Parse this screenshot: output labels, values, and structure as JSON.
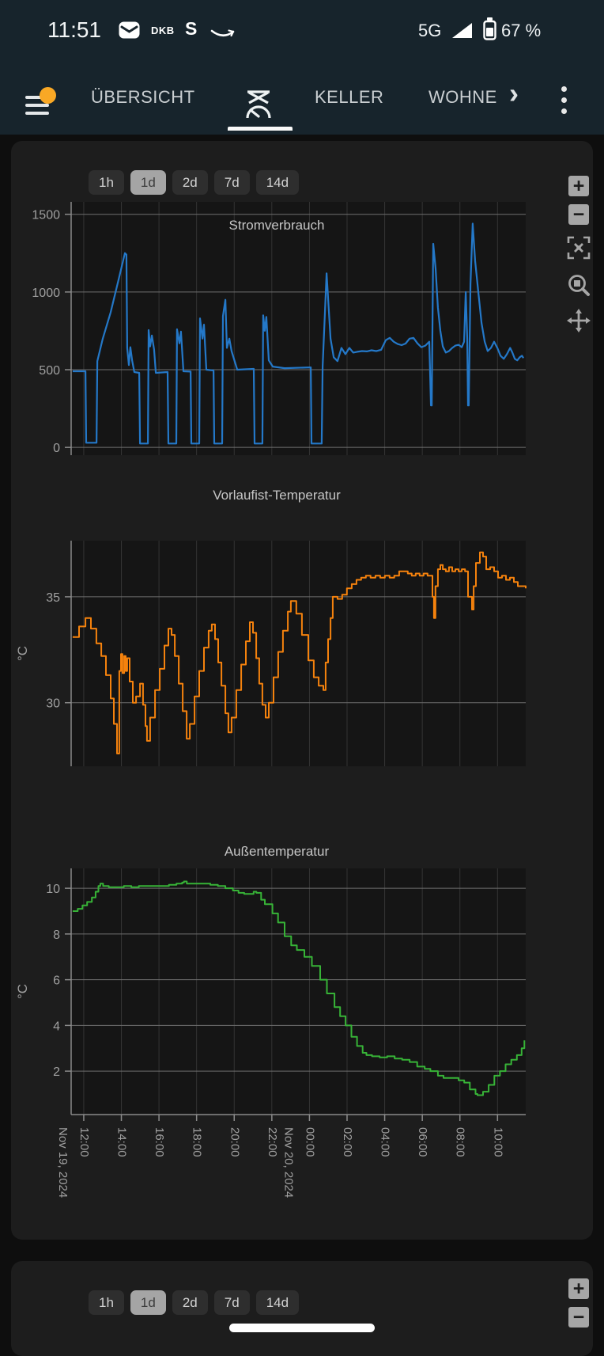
{
  "status_bar": {
    "time": "11:51",
    "dkb_label": "DKB",
    "sparkasse_label": "S",
    "network": "5G",
    "battery": "67 %"
  },
  "tab_bar": {
    "tabs": [
      {
        "label": "ÜBERSICHT",
        "selected": false
      },
      {
        "label": "",
        "icon": "heating-gauge-icon",
        "selected": true
      },
      {
        "label": "KELLER",
        "selected": false
      },
      {
        "label": "WOHNE",
        "selected": false
      }
    ],
    "overflow_chevron": "›"
  },
  "time_range": {
    "options": [
      "1h",
      "1d",
      "2d",
      "7d",
      "14d"
    ],
    "selected": "1d"
  },
  "controls": [
    "zoom-in",
    "zoom-out",
    "reset-view",
    "box-zoom",
    "pan"
  ],
  "x_axis": {
    "range": [
      0,
      24.17
    ],
    "unit": "hours since Nov 19, 2024 11:20",
    "ticks": [
      {
        "t": 0.67,
        "label": "12:00",
        "date": "Nov 19, 2024"
      },
      {
        "t": 2.67,
        "label": "14:00"
      },
      {
        "t": 4.67,
        "label": "16:00"
      },
      {
        "t": 6.67,
        "label": "18:00"
      },
      {
        "t": 8.67,
        "label": "20:00"
      },
      {
        "t": 10.67,
        "label": "22:00"
      },
      {
        "t": 12.67,
        "label": "00:00",
        "date": "Nov 20, 2024"
      },
      {
        "t": 14.67,
        "label": "02:00"
      },
      {
        "t": 16.67,
        "label": "04:00"
      },
      {
        "t": 18.67,
        "label": "06:00"
      },
      {
        "t": 20.67,
        "label": "08:00"
      },
      {
        "t": 22.67,
        "label": "10:00"
      }
    ]
  },
  "chart_data": [
    {
      "type": "line",
      "title": "Stromverbrauch",
      "ylabel": "",
      "color": "#2478c8",
      "yticks": [
        0,
        500,
        1000,
        1500
      ],
      "ylim": [
        -50,
        1580
      ],
      "grid": true,
      "step": false,
      "series": [
        [
          0.08,
          490
        ],
        [
          0.76,
          490
        ],
        [
          0.8,
          30
        ],
        [
          1.35,
          30
        ],
        [
          1.39,
          555
        ],
        [
          1.68,
          700
        ],
        [
          2.1,
          870
        ],
        [
          2.52,
          1080
        ],
        [
          2.86,
          1250
        ],
        [
          2.94,
          1240
        ],
        [
          2.98,
          640
        ],
        [
          3.07,
          530
        ],
        [
          3.15,
          645
        ],
        [
          3.24,
          560
        ],
        [
          3.36,
          485
        ],
        [
          3.62,
          480
        ],
        [
          3.66,
          25
        ],
        [
          4.08,
          25
        ],
        [
          4.12,
          755
        ],
        [
          4.2,
          650
        ],
        [
          4.29,
          720
        ],
        [
          4.41,
          630
        ],
        [
          4.5,
          480
        ],
        [
          5.13,
          485
        ],
        [
          5.17,
          25
        ],
        [
          5.59,
          25
        ],
        [
          5.63,
          760
        ],
        [
          5.76,
          670
        ],
        [
          5.84,
          745
        ],
        [
          5.97,
          490
        ],
        [
          6.35,
          488
        ],
        [
          6.39,
          25
        ],
        [
          6.81,
          25
        ],
        [
          6.85,
          830
        ],
        [
          6.98,
          700
        ],
        [
          7.06,
          790
        ],
        [
          7.19,
          500
        ],
        [
          7.57,
          495
        ],
        [
          7.61,
          25
        ],
        [
          8.03,
          25
        ],
        [
          8.07,
          845
        ],
        [
          8.2,
          950
        ],
        [
          8.28,
          640
        ],
        [
          8.41,
          700
        ],
        [
          8.53,
          620
        ],
        [
          8.83,
          500
        ],
        [
          9.71,
          505
        ],
        [
          9.75,
          25
        ],
        [
          10.17,
          25
        ],
        [
          10.21,
          850
        ],
        [
          10.3,
          750
        ],
        [
          10.38,
          840
        ],
        [
          10.51,
          560
        ],
        [
          10.72,
          520
        ],
        [
          11.35,
          510
        ],
        [
          12.74,
          515
        ],
        [
          12.78,
          25
        ],
        [
          13.32,
          25
        ],
        [
          13.37,
          520
        ],
        [
          13.58,
          1120
        ],
        [
          13.79,
          700
        ],
        [
          13.96,
          580
        ],
        [
          14.16,
          555
        ],
        [
          14.37,
          640
        ],
        [
          14.58,
          600
        ],
        [
          14.79,
          640
        ],
        [
          15,
          610
        ],
        [
          15.21,
          615
        ],
        [
          15.47,
          620
        ],
        [
          15.72,
          618
        ],
        [
          15.97,
          625
        ],
        [
          16.22,
          620
        ],
        [
          16.48,
          628
        ],
        [
          16.73,
          690
        ],
        [
          16.94,
          705
        ],
        [
          17.15,
          680
        ],
        [
          17.36,
          665
        ],
        [
          17.57,
          658
        ],
        [
          17.78,
          668
        ],
        [
          17.99,
          700
        ],
        [
          18.2,
          705
        ],
        [
          18.41,
          670
        ],
        [
          18.62,
          645
        ],
        [
          18.83,
          655
        ],
        [
          19.04,
          680
        ],
        [
          19.13,
          270
        ],
        [
          19.17,
          270
        ],
        [
          19.25,
          1310
        ],
        [
          19.38,
          1150
        ],
        [
          19.5,
          900
        ],
        [
          19.63,
          750
        ],
        [
          19.76,
          650
        ],
        [
          19.92,
          610
        ],
        [
          20.09,
          620
        ],
        [
          20.26,
          640
        ],
        [
          20.43,
          655
        ],
        [
          20.6,
          660
        ],
        [
          20.77,
          645
        ],
        [
          20.89,
          680
        ],
        [
          20.98,
          1000
        ],
        [
          21.06,
          700
        ],
        [
          21.1,
          270
        ],
        [
          21.14,
          270
        ],
        [
          21.23,
          1050
        ],
        [
          21.35,
          1440
        ],
        [
          21.48,
          1200
        ],
        [
          21.65,
          1000
        ],
        [
          21.82,
          800
        ],
        [
          21.99,
          680
        ],
        [
          22.15,
          620
        ],
        [
          22.32,
          640
        ],
        [
          22.49,
          680
        ],
        [
          22.66,
          640
        ],
        [
          22.83,
          590
        ],
        [
          23,
          570
        ],
        [
          23.17,
          600
        ],
        [
          23.34,
          640
        ],
        [
          23.46,
          610
        ],
        [
          23.59,
          570
        ],
        [
          23.72,
          560
        ],
        [
          23.85,
          580
        ],
        [
          23.97,
          590
        ],
        [
          24.05,
          575
        ]
      ]
    },
    {
      "type": "line",
      "title": "Vorlaufist-Temperatur",
      "ylabel": "°C",
      "color": "#f5820d",
      "yticks": [
        30,
        35
      ],
      "ylim": [
        27.0,
        37.65
      ],
      "grid": true,
      "step": true,
      "series": [
        [
          0.08,
          33.1
        ],
        [
          0.42,
          33.6
        ],
        [
          0.76,
          34
        ],
        [
          1.05,
          33.5
        ],
        [
          1.34,
          32.8
        ],
        [
          1.6,
          32.2
        ],
        [
          1.85,
          31.3
        ],
        [
          2.1,
          30.2
        ],
        [
          2.27,
          29
        ],
        [
          2.44,
          27.6
        ],
        [
          2.56,
          31.5
        ],
        [
          2.65,
          32.3
        ],
        [
          2.73,
          31.4
        ],
        [
          2.82,
          32.2
        ],
        [
          2.9,
          31.5
        ],
        [
          2.98,
          32.1
        ],
        [
          3.11,
          31
        ],
        [
          3.28,
          30
        ],
        [
          3.45,
          30.3
        ],
        [
          3.66,
          30.9
        ],
        [
          3.82,
          29.9
        ],
        [
          3.95,
          28.9
        ],
        [
          4.03,
          28.2
        ],
        [
          4.2,
          29.3
        ],
        [
          4.46,
          30.6
        ],
        [
          4.71,
          31.6
        ],
        [
          4.96,
          32.7
        ],
        [
          5.17,
          33.5
        ],
        [
          5.34,
          33.2
        ],
        [
          5.51,
          32.2
        ],
        [
          5.72,
          30.9
        ],
        [
          5.93,
          29.6
        ],
        [
          6.14,
          28.3
        ],
        [
          6.31,
          29
        ],
        [
          6.56,
          30.3
        ],
        [
          6.81,
          31.5
        ],
        [
          7.06,
          32.6
        ],
        [
          7.31,
          33.4
        ],
        [
          7.48,
          33.7
        ],
        [
          7.65,
          33
        ],
        [
          7.82,
          31.9
        ],
        [
          7.99,
          30.8
        ],
        [
          8.2,
          29.5
        ],
        [
          8.36,
          28.6
        ],
        [
          8.53,
          29.3
        ],
        [
          8.78,
          30.6
        ],
        [
          9.04,
          31.8
        ],
        [
          9.29,
          32.9
        ],
        [
          9.5,
          33.8
        ],
        [
          9.67,
          33.3
        ],
        [
          9.84,
          32.1
        ],
        [
          10,
          30.9
        ],
        [
          10.17,
          29.9
        ],
        [
          10.34,
          29.3
        ],
        [
          10.51,
          30
        ],
        [
          10.76,
          31.2
        ],
        [
          11.01,
          32.4
        ],
        [
          11.26,
          33.4
        ],
        [
          11.52,
          34.3
        ],
        [
          11.68,
          34.8
        ],
        [
          11.97,
          34.2
        ],
        [
          12.27,
          33.2
        ],
        [
          12.61,
          32
        ],
        [
          12.9,
          31.2
        ],
        [
          13.16,
          30.8
        ],
        [
          13.41,
          30.6
        ],
        [
          13.53,
          31.9
        ],
        [
          13.66,
          33
        ],
        [
          13.79,
          34
        ],
        [
          13.91,
          35
        ],
        [
          14.16,
          34.9
        ],
        [
          14.41,
          35.1
        ],
        [
          14.66,
          35.4
        ],
        [
          14.92,
          35.6
        ],
        [
          15.17,
          35.8
        ],
        [
          15.42,
          35.9
        ],
        [
          15.67,
          36
        ],
        [
          15.92,
          35.9
        ],
        [
          16.18,
          36
        ],
        [
          16.43,
          35.9
        ],
        [
          16.68,
          36
        ],
        [
          16.93,
          35.9
        ],
        [
          17.18,
          36
        ],
        [
          17.44,
          36.2
        ],
        [
          17.69,
          36.2
        ],
        [
          17.9,
          36.1
        ],
        [
          18.11,
          36
        ],
        [
          18.32,
          36.1
        ],
        [
          18.53,
          36
        ],
        [
          18.74,
          36.1
        ],
        [
          18.95,
          36
        ],
        [
          19.16,
          36
        ],
        [
          19.21,
          35
        ],
        [
          19.29,
          34
        ],
        [
          19.37,
          35.5
        ],
        [
          19.5,
          36.3
        ],
        [
          19.63,
          36.5
        ],
        [
          19.76,
          36.3
        ],
        [
          19.92,
          36.2
        ],
        [
          20.09,
          36.4
        ],
        [
          20.26,
          36.2
        ],
        [
          20.43,
          36.3
        ],
        [
          20.6,
          36.2
        ],
        [
          20.77,
          36.3
        ],
        [
          20.94,
          36.2
        ],
        [
          21.1,
          35
        ],
        [
          21.31,
          34.4
        ],
        [
          21.4,
          35.5
        ],
        [
          21.52,
          36.6
        ],
        [
          21.73,
          37.1
        ],
        [
          21.9,
          36.9
        ],
        [
          22.07,
          36.3
        ],
        [
          22.28,
          36.4
        ],
        [
          22.49,
          36.2
        ],
        [
          22.7,
          35.9
        ],
        [
          22.91,
          36
        ],
        [
          23.12,
          35.8
        ],
        [
          23.33,
          35.9
        ],
        [
          23.54,
          35.7
        ],
        [
          23.75,
          35.5
        ],
        [
          23.96,
          35.5
        ],
        [
          24.17,
          35.4
        ]
      ]
    },
    {
      "type": "line",
      "title": "Außentemperatur",
      "ylabel": "°C",
      "color": "#37b337",
      "yticks": [
        2,
        4,
        6,
        8,
        10
      ],
      "ylim": [
        0.1,
        10.87
      ],
      "grid": true,
      "step": true,
      "series": [
        [
          0.08,
          9
        ],
        [
          0.35,
          9.1
        ],
        [
          0.6,
          9.25
        ],
        [
          0.85,
          9.4
        ],
        [
          1.1,
          9.6
        ],
        [
          1.3,
          9.85
        ],
        [
          1.45,
          10.1
        ],
        [
          1.55,
          10.2
        ],
        [
          1.7,
          10.1
        ],
        [
          2,
          10.05
        ],
        [
          2.4,
          10.05
        ],
        [
          2.8,
          10.1
        ],
        [
          3.2,
          10.05
        ],
        [
          3.6,
          10.1
        ],
        [
          4,
          10.1
        ],
        [
          4.4,
          10.1
        ],
        [
          4.8,
          10.1
        ],
        [
          5.2,
          10.15
        ],
        [
          5.6,
          10.2
        ],
        [
          5.9,
          10.25
        ],
        [
          6,
          10.3
        ],
        [
          6.15,
          10.2
        ],
        [
          6.6,
          10.2
        ],
        [
          7,
          10.2
        ],
        [
          7.4,
          10.15
        ],
        [
          7.8,
          10.1
        ],
        [
          8.2,
          10
        ],
        [
          8.6,
          9.9
        ],
        [
          8.9,
          9.8
        ],
        [
          9.2,
          9.75
        ],
        [
          9.5,
          9.75
        ],
        [
          9.7,
          9.85
        ],
        [
          9.85,
          9.8
        ],
        [
          10.1,
          9.5
        ],
        [
          10.3,
          9.3
        ],
        [
          10.7,
          8.9
        ],
        [
          11,
          8.5
        ],
        [
          11.35,
          7.9
        ],
        [
          11.7,
          7.5
        ],
        [
          12,
          7.3
        ],
        [
          12.4,
          7
        ],
        [
          12.8,
          6.6
        ],
        [
          13.24,
          6
        ],
        [
          13.6,
          5.4
        ],
        [
          14,
          4.8
        ],
        [
          14.3,
          4.4
        ],
        [
          14.59,
          4
        ],
        [
          14.9,
          3.5
        ],
        [
          15.2,
          3.1
        ],
        [
          15.5,
          2.8
        ],
        [
          15.7,
          2.7
        ],
        [
          16,
          2.65
        ],
        [
          16.4,
          2.6
        ],
        [
          16.8,
          2.65
        ],
        [
          17.2,
          2.55
        ],
        [
          17.6,
          2.5
        ],
        [
          18,
          2.4
        ],
        [
          18.4,
          2.2
        ],
        [
          18.8,
          2.1
        ],
        [
          19.1,
          2
        ],
        [
          19.5,
          1.8
        ],
        [
          19.8,
          1.7
        ],
        [
          20.2,
          1.7
        ],
        [
          20.6,
          1.6
        ],
        [
          20.9,
          1.5
        ],
        [
          21.2,
          1.2
        ],
        [
          21.5,
          1
        ],
        [
          21.6,
          0.95
        ],
        [
          21.9,
          1.1
        ],
        [
          22.2,
          1.4
        ],
        [
          22.5,
          1.8
        ],
        [
          22.8,
          2
        ],
        [
          23.1,
          2.3
        ],
        [
          23.4,
          2.5
        ],
        [
          23.7,
          2.7
        ],
        [
          23.95,
          3
        ],
        [
          24.1,
          3.35
        ]
      ]
    }
  ],
  "colors": {
    "header_bg": "#17242c",
    "page_bg": "#0e0e0e",
    "card_bg": "#1d1d1d",
    "plot_bg": "#151515",
    "grid_h": "#6f6f6f",
    "grid_v": "#343434",
    "axis": "#8a8a8a",
    "tick_text": "#a0a0a0",
    "title_text": "#c6c6c6",
    "button_bg": "#2e2e2e",
    "button_text": "#d2d2d2",
    "button_selected_bg": "#a5a5a5",
    "button_selected_text": "#3c3c3c",
    "icon_gray": "#a6a6a6",
    "accent_orange": "#f9a825"
  }
}
